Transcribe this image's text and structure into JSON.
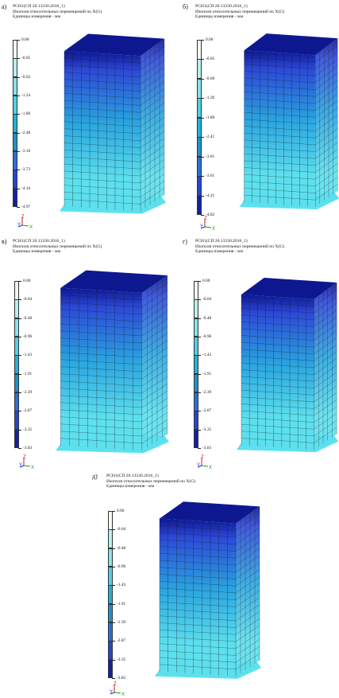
{
  "panels": [
    {
      "id": "a",
      "label": "а)",
      "title": "РСН1(СП 20.13330.2016_1)",
      "subtitle": "Изополя относительных перемещений по X(G)",
      "units": "Единицы измерения - мм",
      "scale": [
        "0.00",
        "-0.05",
        "-0.62",
        "-1.24",
        "-1.86",
        "-2.48",
        "-3.10",
        "-3.72",
        "-4.34",
        "-4.97"
      ]
    },
    {
      "id": "b",
      "label": "б)",
      "title": "РСН1(СП 20.13330.2016_1)",
      "subtitle": "Изополя относительных перемещений по X(G)",
      "units": "Единицы измерения - мм",
      "scale": [
        "0.00",
        "-0.05",
        "-0.60",
        "-1.20",
        "-1.80",
        "-2.41",
        "-3.01",
        "-3.61",
        "-4.21",
        "-4.82"
      ]
    },
    {
      "id": "v",
      "label": "в)",
      "title": "РСН1(СП 20.13330.2016_1)",
      "subtitle": "Изополя относительных перемещений по X(G)",
      "units": "Единицы измерения - мм",
      "scale": [
        "0.00",
        "-0.04",
        "-0.48",
        "-0.96",
        "-1.43",
        "-1.91",
        "-2.39",
        "-2.87",
        "-3.35",
        "-3.83"
      ]
    },
    {
      "id": "g",
      "label": "г)",
      "title": "РСН1(СП 20.13330.2016_1)",
      "subtitle": "Изополя относительных перемещений по X(G)",
      "units": "Единицы измерения - мм",
      "scale": [
        "0.00",
        "-0.04",
        "-0.48",
        "-0.96",
        "-1.43",
        "-1.91",
        "-2.39",
        "-2.87",
        "-3.35",
        "-3.83"
      ]
    },
    {
      "id": "d",
      "label": "д)",
      "title": "РСН1(СП 20.13330.2016_1)",
      "subtitle": "Изополя относительных перемещений по X(G)",
      "units": "Единицы измерения - мм",
      "scale": [
        "0.00",
        "-0.04",
        "-0.48",
        "-0.96",
        "-1.43",
        "-1.91",
        "-2.39",
        "-2.87",
        "-3.35",
        "-3.83"
      ]
    }
  ],
  "axis_labels": {
    "y": "Y",
    "z": "Z",
    "x": "X"
  },
  "colors": {
    "scale_swatches": [
      "#f3fbf1",
      "#b6f1ee",
      "#86e4ec",
      "#4ed1e6",
      "#1fb4da",
      "#1c92cf",
      "#2b6fd9",
      "#2447d0",
      "#151fa6"
    ],
    "building_light": "#5de0ee",
    "building_mid": "#2aa5e0",
    "building_dark": "#2c49d8",
    "building_top": "#0d1890",
    "grid_line": "#1a1a1a",
    "axis_x": "#1a9a1a",
    "axis_y": "#1a2ac8",
    "axis_z": "#d01818"
  }
}
